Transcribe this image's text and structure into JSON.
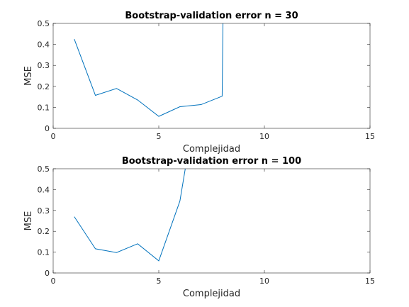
{
  "chart_data": [
    {
      "type": "line",
      "title": "Bootstrap-validation error n = 30",
      "xlabel": "Complejidad",
      "ylabel": "MSE",
      "xlim": [
        0,
        15
      ],
      "ylim": [
        0,
        0.5
      ],
      "xticks": [
        0,
        5,
        10,
        15
      ],
      "yticks": [
        0,
        0.1,
        0.2,
        0.3,
        0.4,
        0.5
      ],
      "xtick_labels": [
        "0",
        "5",
        "10",
        "15"
      ],
      "ytick_labels": [
        "0",
        "0.1",
        "0.2",
        "0.3",
        "0.4",
        "0.5"
      ],
      "grid": false,
      "series_color": "#0072BD",
      "series": [
        {
          "x": [
            1,
            2,
            3,
            4,
            5,
            6,
            7,
            8,
            8.05
          ],
          "y": [
            0.425,
            0.157,
            0.19,
            0.135,
            0.057,
            0.103,
            0.113,
            0.153,
            0.6
          ]
        }
      ]
    },
    {
      "type": "line",
      "title": "Bootstrap-validation error n = 100",
      "xlabel": "Complejidad",
      "ylabel": "MSE",
      "xlim": [
        0,
        15
      ],
      "ylim": [
        0,
        0.5
      ],
      "xticks": [
        0,
        5,
        10,
        15
      ],
      "yticks": [
        0,
        0.1,
        0.2,
        0.3,
        0.4,
        0.5
      ],
      "xtick_labels": [
        "0",
        "5",
        "10",
        "15"
      ],
      "ytick_labels": [
        "0",
        "0.1",
        "0.2",
        "0.3",
        "0.4",
        "0.5"
      ],
      "grid": false,
      "series_color": "#0072BD",
      "series": [
        {
          "x": [
            1,
            2,
            3,
            4,
            5,
            6,
            6.5
          ],
          "y": [
            0.27,
            0.116,
            0.098,
            0.14,
            0.058,
            0.345,
            0.65
          ]
        }
      ]
    }
  ]
}
